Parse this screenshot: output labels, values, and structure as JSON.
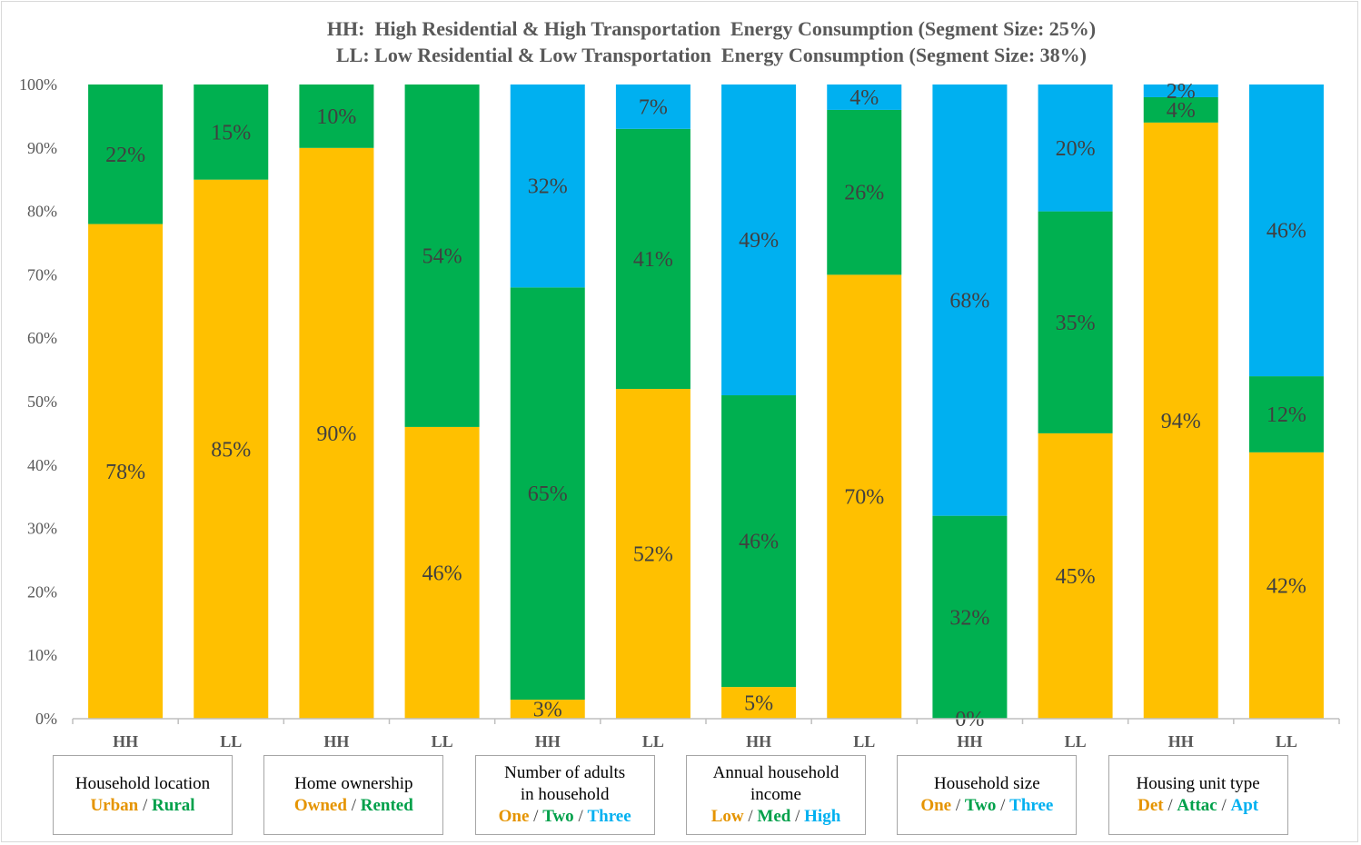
{
  "chart_data": {
    "type": "bar",
    "stacked": true,
    "title_lines": [
      "HH:  High Residential & High Transportation  Energy Consumption (Segment Size: 25%)",
      "LL: Low Residential & Low Transportation  Energy Consumption (Segment Size: 38%)"
    ],
    "y_ticks": [
      "0%",
      "10%",
      "20%",
      "30%",
      "40%",
      "50%",
      "60%",
      "70%",
      "80%",
      "90%",
      "100%"
    ],
    "ylim": [
      0,
      100
    ],
    "grid": false,
    "colors": {
      "first": "#ffc000",
      "second": "#00b050",
      "third": "#00b0f0"
    },
    "bars": [
      {
        "x": "HH",
        "group": 0,
        "segments": [
          {
            "value": 78,
            "label": "78%",
            "level": "first"
          },
          {
            "value": 22,
            "label": "22%",
            "level": "second"
          }
        ]
      },
      {
        "x": "LL",
        "group": 0,
        "segments": [
          {
            "value": 85,
            "label": "85%",
            "level": "first"
          },
          {
            "value": 15,
            "label": "15%",
            "level": "second"
          }
        ]
      },
      {
        "x": "HH",
        "group": 1,
        "segments": [
          {
            "value": 90,
            "label": "90%",
            "level": "first"
          },
          {
            "value": 10,
            "label": "10%",
            "level": "second"
          }
        ]
      },
      {
        "x": "LL",
        "group": 1,
        "segments": [
          {
            "value": 46,
            "label": "46%",
            "level": "first"
          },
          {
            "value": 54,
            "label": "54%",
            "level": "second"
          }
        ]
      },
      {
        "x": "HH",
        "group": 2,
        "segments": [
          {
            "value": 3,
            "label": "3%",
            "level": "first"
          },
          {
            "value": 65,
            "label": "65%",
            "level": "second"
          },
          {
            "value": 32,
            "label": "32%",
            "level": "third"
          }
        ]
      },
      {
        "x": "LL",
        "group": 2,
        "segments": [
          {
            "value": 52,
            "label": "52%",
            "level": "first"
          },
          {
            "value": 41,
            "label": "41%",
            "level": "second"
          },
          {
            "value": 7,
            "label": "7%",
            "level": "third"
          }
        ]
      },
      {
        "x": "HH",
        "group": 3,
        "segments": [
          {
            "value": 5,
            "label": "5%",
            "level": "first"
          },
          {
            "value": 46,
            "label": "46%",
            "level": "second"
          },
          {
            "value": 49,
            "label": "49%",
            "level": "third"
          }
        ]
      },
      {
        "x": "LL",
        "group": 3,
        "segments": [
          {
            "value": 70,
            "label": "70%",
            "level": "first"
          },
          {
            "value": 26,
            "label": "26%",
            "level": "second"
          },
          {
            "value": 4,
            "label": "4%",
            "level": "third"
          }
        ]
      },
      {
        "x": "HH",
        "group": 4,
        "segments": [
          {
            "value": 0,
            "label": "0%",
            "level": "first"
          },
          {
            "value": 32,
            "label": "32%",
            "level": "second"
          },
          {
            "value": 68,
            "label": "68%",
            "level": "third"
          }
        ]
      },
      {
        "x": "LL",
        "group": 4,
        "segments": [
          {
            "value": 45,
            "label": "45%",
            "level": "first"
          },
          {
            "value": 35,
            "label": "35%",
            "level": "second"
          },
          {
            "value": 20,
            "label": "20%",
            "level": "third"
          }
        ]
      },
      {
        "x": "HH",
        "group": 5,
        "segments": [
          {
            "value": 94,
            "label": "94%",
            "level": "first"
          },
          {
            "value": 4,
            "label": "4%",
            "level": "second"
          },
          {
            "value": 2,
            "label": "2%",
            "level": "third"
          }
        ]
      },
      {
        "x": "LL",
        "group": 5,
        "segments": [
          {
            "value": 42,
            "label": "42%",
            "level": "first"
          },
          {
            "value": 12,
            "label": "12%",
            "level": "second"
          },
          {
            "value": 46,
            "label": "46%",
            "level": "third"
          }
        ]
      }
    ],
    "groups": [
      {
        "title_lines": [
          "Household location"
        ],
        "legend": [
          "Urban",
          "Rural"
        ]
      },
      {
        "title_lines": [
          "Home ownership"
        ],
        "legend": [
          "Owned",
          "Rented"
        ]
      },
      {
        "title_lines": [
          "Number of adults",
          "in household"
        ],
        "legend": [
          "One",
          "Two",
          "Three"
        ]
      },
      {
        "title_lines": [
          "Annual household",
          "income"
        ],
        "legend": [
          "Low",
          "Med",
          "High"
        ]
      },
      {
        "title_lines": [
          "Household size"
        ],
        "legend": [
          "One",
          "Two",
          "Three"
        ]
      },
      {
        "title_lines": [
          "Housing unit type"
        ],
        "legend": [
          "Det",
          "Attac",
          "Apt"
        ]
      }
    ],
    "legend_separator": " / "
  }
}
